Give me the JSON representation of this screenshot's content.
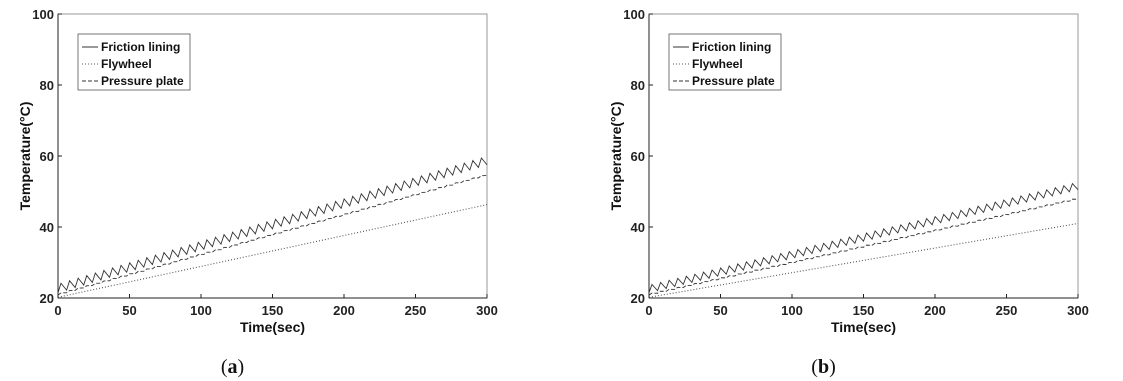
{
  "chart_data": [
    {
      "type": "line",
      "panel_label": "(a)",
      "panel_letter": "a",
      "xlabel": "Time(sec)",
      "ylabel": "Temperature(°C)",
      "xlim": [
        0,
        300
      ],
      "ylim": [
        20,
        100
      ],
      "xticks": [
        0,
        50,
        100,
        150,
        200,
        250,
        300
      ],
      "yticks": [
        20,
        40,
        60,
        80,
        100
      ],
      "grid": false,
      "legend_position": "top-left",
      "series": [
        {
          "name": "Friction lining",
          "style": "solid",
          "color": "#333333",
          "start": 21.5,
          "end": 57.5,
          "sawtooth_amplitude": 2.4,
          "cycles": 50
        },
        {
          "name": "Flywheel",
          "style": "dotted",
          "color": "#555555",
          "start": 20.2,
          "end": 46.3,
          "sawtooth_amplitude": 0,
          "cycles": 0
        },
        {
          "name": "Pressure plate",
          "style": "dashed",
          "color": "#333333",
          "start": 20.8,
          "end": 54.5,
          "sawtooth_amplitude": 0.4,
          "cycles": 50
        }
      ]
    },
    {
      "type": "line",
      "panel_label": "(b)",
      "panel_letter": "b",
      "xlabel": "Time(sec)",
      "ylabel": "Temperature(°C)",
      "xlim": [
        0,
        300
      ],
      "ylim": [
        20,
        100
      ],
      "xticks": [
        0,
        50,
        100,
        150,
        200,
        250,
        300
      ],
      "yticks": [
        20,
        40,
        60,
        80,
        100
      ],
      "grid": false,
      "legend_position": "top-left",
      "series": [
        {
          "name": "Friction lining",
          "style": "solid",
          "color": "#333333",
          "start": 21.5,
          "end": 50.5,
          "sawtooth_amplitude": 2.1,
          "cycles": 50
        },
        {
          "name": "Flywheel",
          "style": "dotted",
          "color": "#555555",
          "start": 20.2,
          "end": 41.0,
          "sawtooth_amplitude": 0,
          "cycles": 0
        },
        {
          "name": "Pressure plate",
          "style": "dashed",
          "color": "#333333",
          "start": 20.8,
          "end": 47.8,
          "sawtooth_amplitude": 0.4,
          "cycles": 50
        }
      ]
    }
  ]
}
